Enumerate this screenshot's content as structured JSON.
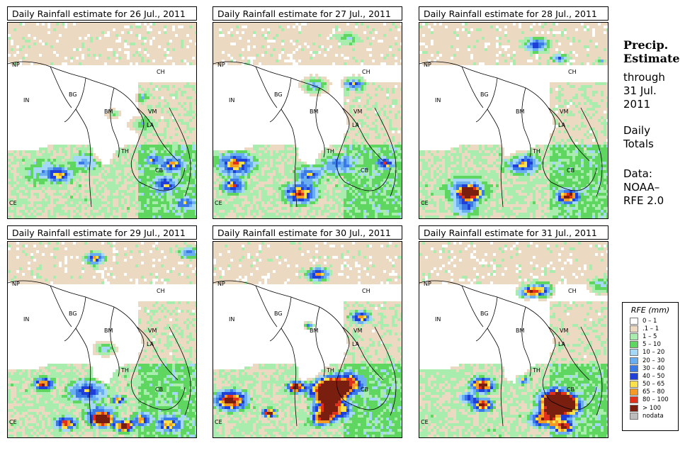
{
  "panels": [
    {
      "title": "Daily Rainfall estimate for  26 Jul., 2011",
      "seed": 26,
      "intensity": 0.55
    },
    {
      "title": "Daily Rainfall estimate for  27 Jul., 2011",
      "seed": 27,
      "intensity": 0.75
    },
    {
      "title": "Daily Rainfall estimate for  28 Jul., 2011",
      "seed": 28,
      "intensity": 0.8
    },
    {
      "title": "Daily Rainfall estimate for  29 Jul., 2011",
      "seed": 29,
      "intensity": 1.0
    },
    {
      "title": "Daily Rainfall estimate for  30 Jul., 2011",
      "seed": 30,
      "intensity": 1.0
    },
    {
      "title": "Daily Rainfall estimate for  31 Jul., 2011",
      "seed": 31,
      "intensity": 1.0
    }
  ],
  "country_labels": [
    "NP",
    "CH",
    "IN",
    "BG",
    "BM",
    "VM",
    "LA",
    "TH",
    "CB",
    "CE"
  ],
  "side": {
    "line1": "Precip.",
    "line2": "Estimate",
    "line3": "through",
    "line4": "31 Jul.",
    "line5": "2011",
    "line6": "Daily",
    "line7": "Totals",
    "line8": "Data:",
    "line9": "NOAA–",
    "line10": "RFE 2.0"
  },
  "legend": {
    "title": "RFE (mm)",
    "items": [
      {
        "label": "0 – 1",
        "color": "#ffffff"
      },
      {
        "label": ".1 – 1",
        "color": "#ecd9c2"
      },
      {
        "label": "1 – 5",
        "color": "#a8ecae"
      },
      {
        "label": "5 – 10",
        "color": "#5fd65f"
      },
      {
        "label": "10 – 20",
        "color": "#a5d8f6"
      },
      {
        "label": "20 – 30",
        "color": "#69aef0"
      },
      {
        "label": "30 – 40",
        "color": "#3a79e6"
      },
      {
        "label": "40 – 50",
        "color": "#1f3fd8"
      },
      {
        "label": "50 – 65",
        "color": "#fce14a"
      },
      {
        "label": "65 – 80",
        "color": "#f59a22"
      },
      {
        "label": "80 – 100",
        "color": "#e2301b"
      },
      {
        "label": "> 100",
        "color": "#7a1e10"
      },
      {
        "label": "nodata",
        "color": "#bdbdbd"
      }
    ]
  }
}
